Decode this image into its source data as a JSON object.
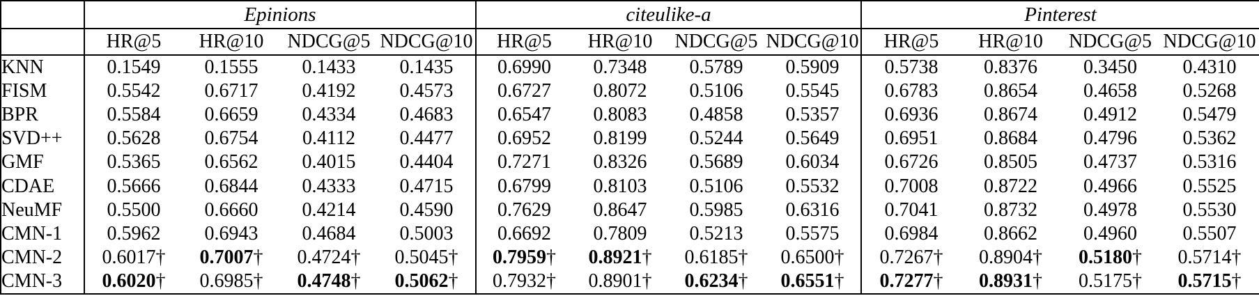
{
  "table": {
    "datasets": [
      "Epinions",
      "citeulike-a",
      "Pinterest"
    ],
    "metrics": [
      "HR@5",
      "HR@10",
      "NDCG@5",
      "NDCG@10"
    ],
    "dagger": "†",
    "rows": [
      {
        "model": "KNN",
        "cells": [
          {
            "v": "0.1549"
          },
          {
            "v": "0.1555"
          },
          {
            "v": "0.1433"
          },
          {
            "v": "0.1435"
          },
          {
            "v": "0.6990"
          },
          {
            "v": "0.7348"
          },
          {
            "v": "0.5789"
          },
          {
            "v": "0.5909"
          },
          {
            "v": "0.5738"
          },
          {
            "v": "0.8376"
          },
          {
            "v": "0.3450"
          },
          {
            "v": "0.4310"
          }
        ]
      },
      {
        "model": "FISM",
        "cells": [
          {
            "v": "0.5542"
          },
          {
            "v": "0.6717"
          },
          {
            "v": "0.4192"
          },
          {
            "v": "0.4573"
          },
          {
            "v": "0.6727"
          },
          {
            "v": "0.8072"
          },
          {
            "v": "0.5106"
          },
          {
            "v": "0.5545"
          },
          {
            "v": "0.6783"
          },
          {
            "v": "0.8654"
          },
          {
            "v": "0.4658"
          },
          {
            "v": "0.5268"
          }
        ]
      },
      {
        "model": "BPR",
        "cells": [
          {
            "v": "0.5584"
          },
          {
            "v": "0.6659"
          },
          {
            "v": "0.4334"
          },
          {
            "v": "0.4683"
          },
          {
            "v": "0.6547"
          },
          {
            "v": "0.8083"
          },
          {
            "v": "0.4858"
          },
          {
            "v": "0.5357"
          },
          {
            "v": "0.6936"
          },
          {
            "v": "0.8674"
          },
          {
            "v": "0.4912"
          },
          {
            "v": "0.5479"
          }
        ]
      },
      {
        "model": "SVD++",
        "cells": [
          {
            "v": "0.5628"
          },
          {
            "v": "0.6754"
          },
          {
            "v": "0.4112"
          },
          {
            "v": "0.4477"
          },
          {
            "v": "0.6952"
          },
          {
            "v": "0.8199"
          },
          {
            "v": "0.5244"
          },
          {
            "v": "0.5649"
          },
          {
            "v": "0.6951"
          },
          {
            "v": "0.8684"
          },
          {
            "v": "0.4796"
          },
          {
            "v": "0.5362"
          }
        ]
      },
      {
        "model": "GMF",
        "cells": [
          {
            "v": "0.5365"
          },
          {
            "v": "0.6562"
          },
          {
            "v": "0.4015"
          },
          {
            "v": "0.4404"
          },
          {
            "v": "0.7271"
          },
          {
            "v": "0.8326"
          },
          {
            "v": "0.5689"
          },
          {
            "v": "0.6034"
          },
          {
            "v": "0.6726"
          },
          {
            "v": "0.8505"
          },
          {
            "v": "0.4737"
          },
          {
            "v": "0.5316"
          }
        ]
      },
      {
        "model": "CDAE",
        "cells": [
          {
            "v": "0.5666"
          },
          {
            "v": "0.6844"
          },
          {
            "v": "0.4333"
          },
          {
            "v": "0.4715"
          },
          {
            "v": "0.6799"
          },
          {
            "v": "0.8103"
          },
          {
            "v": "0.5106"
          },
          {
            "v": "0.5532"
          },
          {
            "v": "0.7008"
          },
          {
            "v": "0.8722"
          },
          {
            "v": "0.4966"
          },
          {
            "v": "0.5525"
          }
        ]
      },
      {
        "model": "NeuMF",
        "cells": [
          {
            "v": "0.5500"
          },
          {
            "v": "0.6660"
          },
          {
            "v": "0.4214"
          },
          {
            "v": "0.4590"
          },
          {
            "v": "0.7629"
          },
          {
            "v": "0.8647"
          },
          {
            "v": "0.5985"
          },
          {
            "v": "0.6316"
          },
          {
            "v": "0.7041"
          },
          {
            "v": "0.8732"
          },
          {
            "v": "0.4978"
          },
          {
            "v": "0.5530"
          }
        ]
      },
      {
        "model": "CMN-1",
        "cells": [
          {
            "v": "0.5962"
          },
          {
            "v": "0.6943"
          },
          {
            "v": "0.4684"
          },
          {
            "v": "0.5003"
          },
          {
            "v": "0.6692"
          },
          {
            "v": "0.7809"
          },
          {
            "v": "0.5213"
          },
          {
            "v": "0.5575"
          },
          {
            "v": "0.6984"
          },
          {
            "v": "0.8662"
          },
          {
            "v": "0.4960"
          },
          {
            "v": "0.5507"
          }
        ]
      },
      {
        "model": "CMN-2",
        "cells": [
          {
            "v": "0.6017",
            "d": true
          },
          {
            "v": "0.7007",
            "d": true,
            "b": true
          },
          {
            "v": "0.4724",
            "d": true
          },
          {
            "v": "0.5045",
            "d": true
          },
          {
            "v": "0.7959",
            "d": true,
            "b": true
          },
          {
            "v": "0.8921",
            "d": true,
            "b": true
          },
          {
            "v": "0.6185",
            "d": true
          },
          {
            "v": "0.6500",
            "d": true
          },
          {
            "v": "0.7267",
            "d": true
          },
          {
            "v": "0.8904",
            "d": true
          },
          {
            "v": "0.5180",
            "d": true,
            "b": true
          },
          {
            "v": "0.5714",
            "d": true
          }
        ]
      },
      {
        "model": "CMN-3",
        "cells": [
          {
            "v": "0.6020",
            "d": true,
            "b": true
          },
          {
            "v": "0.6985",
            "d": true
          },
          {
            "v": "0.4748",
            "d": true,
            "b": true
          },
          {
            "v": "0.5062",
            "d": true,
            "b": true
          },
          {
            "v": "0.7932",
            "d": true
          },
          {
            "v": "0.8901",
            "d": true
          },
          {
            "v": "0.6234",
            "d": true,
            "b": true
          },
          {
            "v": "0.6551",
            "d": true,
            "b": true
          },
          {
            "v": "0.7277",
            "d": true,
            "b": true
          },
          {
            "v": "0.8931",
            "d": true,
            "b": true
          },
          {
            "v": "0.5175",
            "d": true
          },
          {
            "v": "0.5715",
            "d": true,
            "b": true
          }
        ]
      }
    ]
  }
}
